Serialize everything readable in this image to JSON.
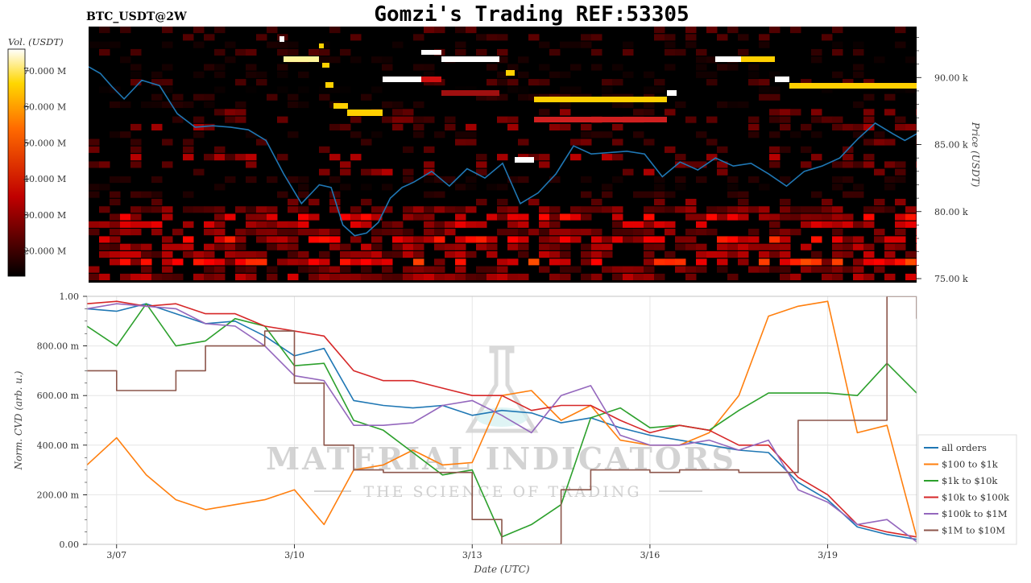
{
  "title": "Gomzi's Trading REF:53305",
  "symbol": "BTC_USDT@2W",
  "colors": {
    "blue": "#1f77b4",
    "orange": "#ff7f0e",
    "green": "#2ca02c",
    "red": "#d62728",
    "purple": "#9467bd",
    "brown": "#8c564b",
    "heatmap_bg": "#000000",
    "watermark": "#d0d0d0"
  },
  "watermark": {
    "line1": "MATERIAL INDICATORS",
    "line2": "THE SCIENCE OF TRADING"
  },
  "chart_data": [
    {
      "type": "heatmap",
      "colorbar": {
        "label": "Vol. (USDT)",
        "ticks": [
          "70.000 M",
          "60.000 M",
          "50.000 M",
          "40.000 M",
          "30.000 M",
          "20.000 M"
        ],
        "tick_values": [
          70,
          60,
          50,
          40,
          30,
          20
        ],
        "range": [
          13,
          76
        ],
        "colormap": "hot"
      },
      "ylabel": "Price (USDT)",
      "yticks": [
        "90.00 k",
        "85.00 k",
        "80.00 k",
        "75.00 k"
      ],
      "ytick_values": [
        90,
        85,
        80,
        75
      ],
      "ylim": [
        74.7,
        93.8
      ],
      "x_range": [
        0,
        14
      ],
      "price_series": {
        "name": "",
        "x": [
          0,
          0.2,
          0.4,
          0.6,
          0.9,
          1.2,
          1.5,
          1.8,
          2.1,
          2.4,
          2.7,
          3.0,
          3.3,
          3.6,
          3.9,
          4.1,
          4.3,
          4.5,
          4.7,
          4.9,
          5.1,
          5.3,
          5.5,
          5.8,
          6.1,
          6.4,
          6.7,
          7.0,
          7.3,
          7.6,
          7.9,
          8.2,
          8.5,
          8.8,
          9.1,
          9.4,
          9.7,
          10.0,
          10.3,
          10.6,
          10.9,
          11.2,
          11.5,
          11.8,
          12.1,
          12.4,
          12.7,
          13.0,
          13.3,
          13.6,
          13.8,
          14
        ],
        "y": [
          90.8,
          90.3,
          89.3,
          88.4,
          89.8,
          89.4,
          87.3,
          86.3,
          86.4,
          86.3,
          86.1,
          85.3,
          82.8,
          80.6,
          82.0,
          81.8,
          79.0,
          78.2,
          78.4,
          79.2,
          81.0,
          81.8,
          82.2,
          83.0,
          81.9,
          83.2,
          82.5,
          83.6,
          80.6,
          81.4,
          82.8,
          84.9,
          84.3,
          84.4,
          84.5,
          84.3,
          82.6,
          83.7,
          83.1,
          84.0,
          83.4,
          83.6,
          82.8,
          81.9,
          83.0,
          83.4,
          84.0,
          85.4,
          86.6,
          85.8,
          85.3,
          85.8
        ]
      }
    },
    {
      "type": "line",
      "xlabel": "Date (UTC)",
      "ylabel": "Norm. CVD (arb. u.)",
      "x_range": [
        0,
        14
      ],
      "ylim": [
        0,
        1
      ],
      "xticks": [
        "3/07",
        "3/10",
        "3/13",
        "3/16",
        "3/19"
      ],
      "xtick_values": [
        0.5,
        3.5,
        6.5,
        9.5,
        12.5
      ],
      "yticks": [
        "1.00",
        "800.00 m",
        "600.00 m",
        "400.00 m",
        "200.00 m",
        "0.00"
      ],
      "ytick_values": [
        1.0,
        0.8,
        0.6,
        0.4,
        0.2,
        0.0
      ],
      "grid": true,
      "legend_position": "right",
      "x": [
        0,
        0.5,
        1.0,
        1.5,
        2.0,
        2.5,
        3.0,
        3.5,
        4.0,
        4.5,
        5.0,
        5.5,
        6.0,
        6.5,
        7.0,
        7.5,
        8.0,
        8.5,
        9.0,
        9.5,
        10.0,
        10.5,
        11.0,
        11.5,
        12.0,
        12.5,
        13.0,
        13.5,
        14.0
      ],
      "series": [
        {
          "name": "all orders",
          "color": "#1f77b4",
          "values": [
            0.95,
            0.94,
            0.97,
            0.93,
            0.89,
            0.9,
            0.84,
            0.76,
            0.79,
            0.58,
            0.56,
            0.55,
            0.56,
            0.52,
            0.54,
            0.53,
            0.49,
            0.51,
            0.47,
            0.44,
            0.42,
            0.4,
            0.38,
            0.37,
            0.25,
            0.18,
            0.07,
            0.04,
            0.02
          ]
        },
        {
          "name": "$100 to $1k",
          "color": "#ff7f0e",
          "values": [
            0.32,
            0.43,
            0.28,
            0.18,
            0.14,
            0.16,
            0.18,
            0.22,
            0.08,
            0.3,
            0.32,
            0.38,
            0.32,
            0.33,
            0.6,
            0.62,
            0.5,
            0.56,
            0.42,
            0.4,
            0.4,
            0.45,
            0.6,
            0.92,
            0.96,
            0.98,
            0.45,
            0.48,
            0.03
          ]
        },
        {
          "name": "$1k to $10k",
          "color": "#2ca02c",
          "values": [
            0.88,
            0.8,
            0.97,
            0.8,
            0.82,
            0.91,
            0.88,
            0.72,
            0.73,
            0.5,
            0.46,
            0.37,
            0.28,
            0.3,
            0.03,
            0.08,
            0.16,
            0.51,
            0.55,
            0.47,
            0.48,
            0.46,
            0.54,
            0.61,
            0.61,
            0.61,
            0.6,
            0.73,
            0.61
          ]
        },
        {
          "name": "$10k to $100k",
          "color": "#d62728",
          "values": [
            0.97,
            0.98,
            0.96,
            0.97,
            0.93,
            0.93,
            0.88,
            0.86,
            0.84,
            0.7,
            0.66,
            0.66,
            0.63,
            0.6,
            0.6,
            0.54,
            0.56,
            0.56,
            0.5,
            0.45,
            0.48,
            0.46,
            0.4,
            0.4,
            0.27,
            0.2,
            0.08,
            0.05,
            0.03
          ]
        },
        {
          "name": "$100k to $1M",
          "color": "#9467bd",
          "values": [
            0.95,
            0.97,
            0.96,
            0.95,
            0.89,
            0.88,
            0.8,
            0.68,
            0.66,
            0.48,
            0.48,
            0.49,
            0.56,
            0.58,
            0.52,
            0.45,
            0.6,
            0.64,
            0.44,
            0.4,
            0.4,
            0.42,
            0.38,
            0.42,
            0.22,
            0.17,
            0.08,
            0.1,
            0.01
          ]
        },
        {
          "name": "$1M to $10M",
          "color": "#8c564b",
          "values": [
            0.7,
            0.62,
            0.62,
            0.7,
            0.8,
            0.8,
            0.86,
            0.65,
            0.4,
            0.3,
            0.29,
            0.29,
            0.29,
            0.1,
            0.0,
            0.0,
            0.22,
            0.3,
            0.3,
            0.29,
            0.3,
            0.3,
            0.29,
            0.29,
            0.5,
            0.5,
            0.5,
            1.0,
            0.91
          ]
        }
      ]
    }
  ]
}
